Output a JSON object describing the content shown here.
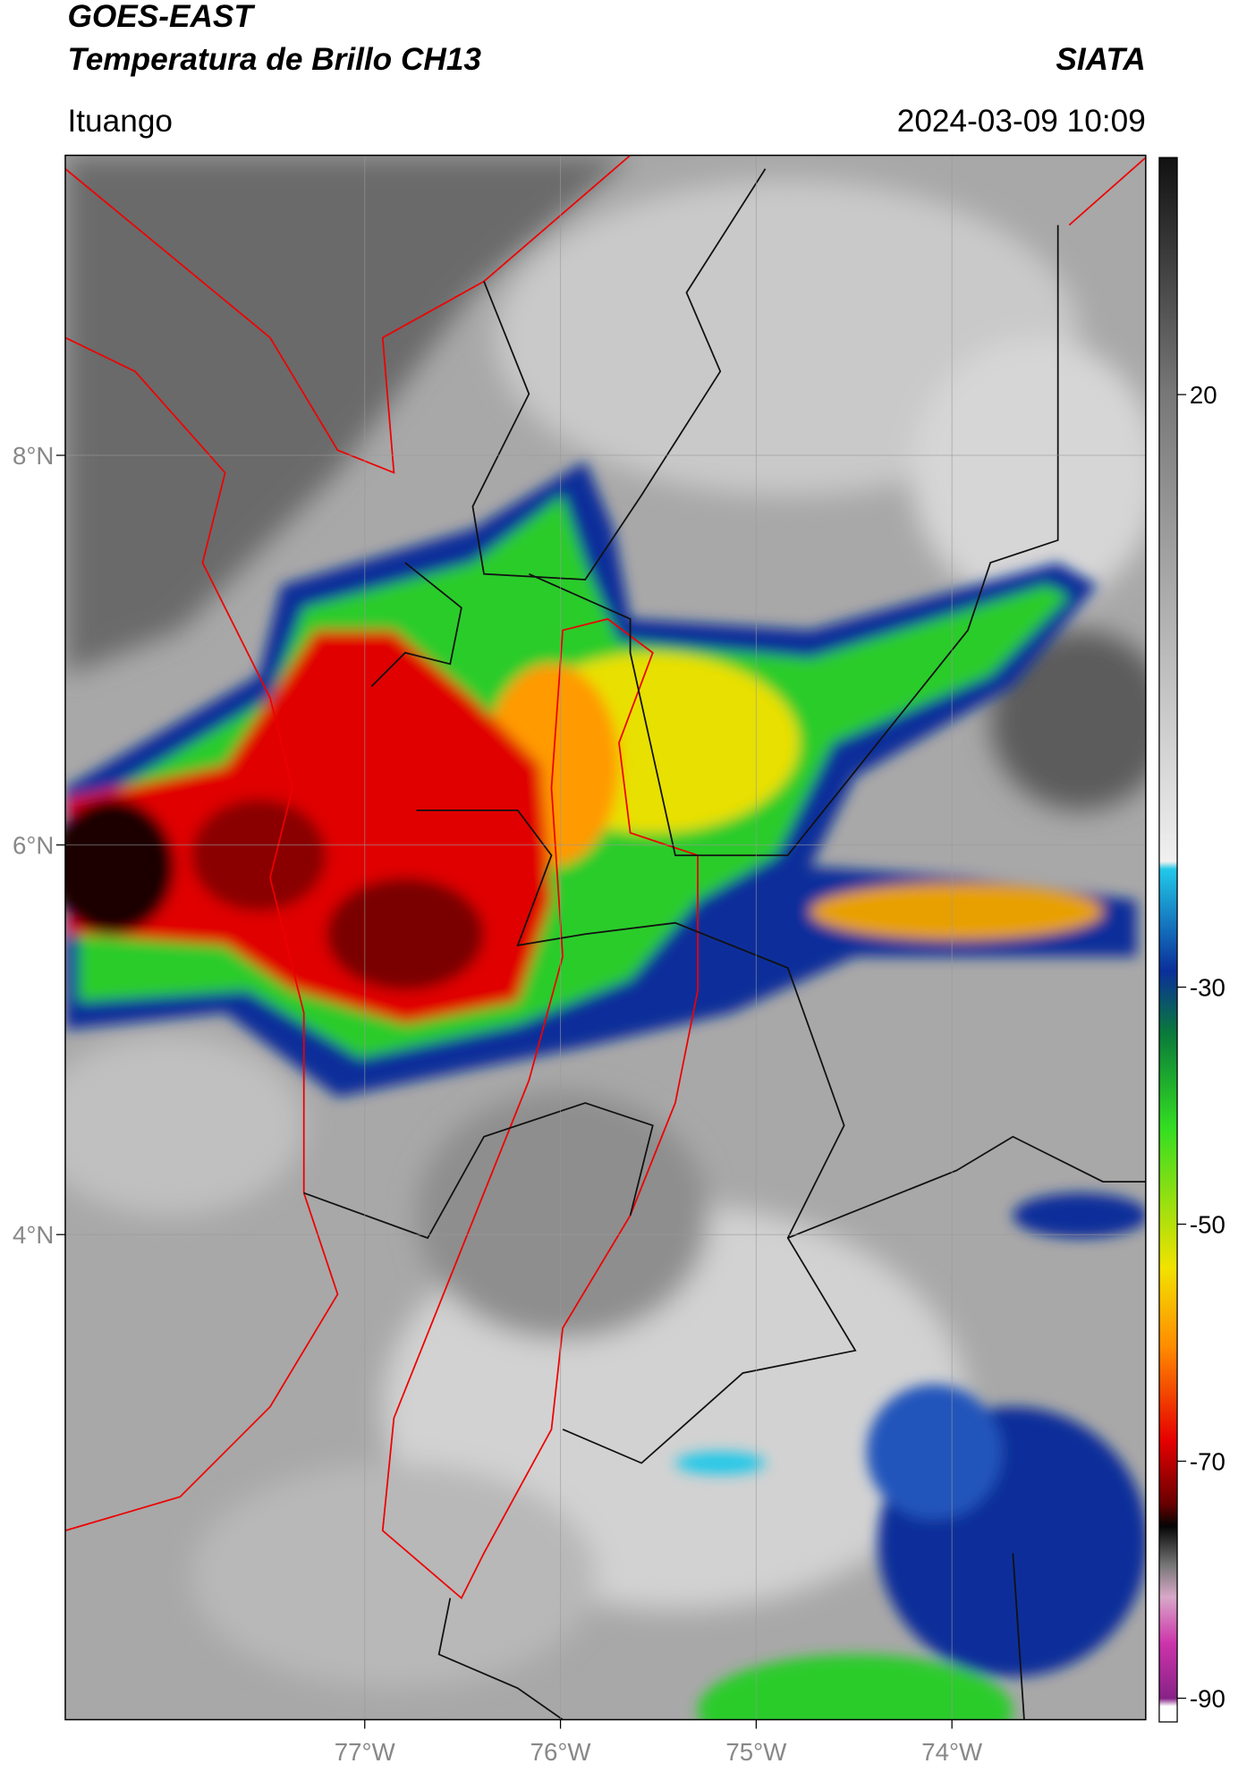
{
  "header": {
    "title": "GOES-EAST",
    "subtitle": "Temperatura de Brillo CH13",
    "brand": "SIATA",
    "location": "Ituango",
    "datetime": "2024-03-09 10:09"
  },
  "map": {
    "xlim": [
      -78.53,
      -73.01
    ],
    "ylim": [
      1.51,
      9.54
    ],
    "xticks": [
      {
        "value": -77,
        "label": "77°W"
      },
      {
        "value": -76,
        "label": "76°W"
      },
      {
        "value": -75,
        "label": "75°W"
      },
      {
        "value": -74,
        "label": "74°W"
      }
    ],
    "yticks": [
      {
        "value": 8,
        "label": "8°N"
      },
      {
        "value": 6,
        "label": "6°N"
      },
      {
        "value": 4,
        "label": "4°N"
      }
    ],
    "grid": true
  },
  "colorbar": {
    "lim": [
      -92,
      40
    ],
    "ticks": [
      20,
      -30,
      -50,
      -70,
      -90
    ]
  }
}
